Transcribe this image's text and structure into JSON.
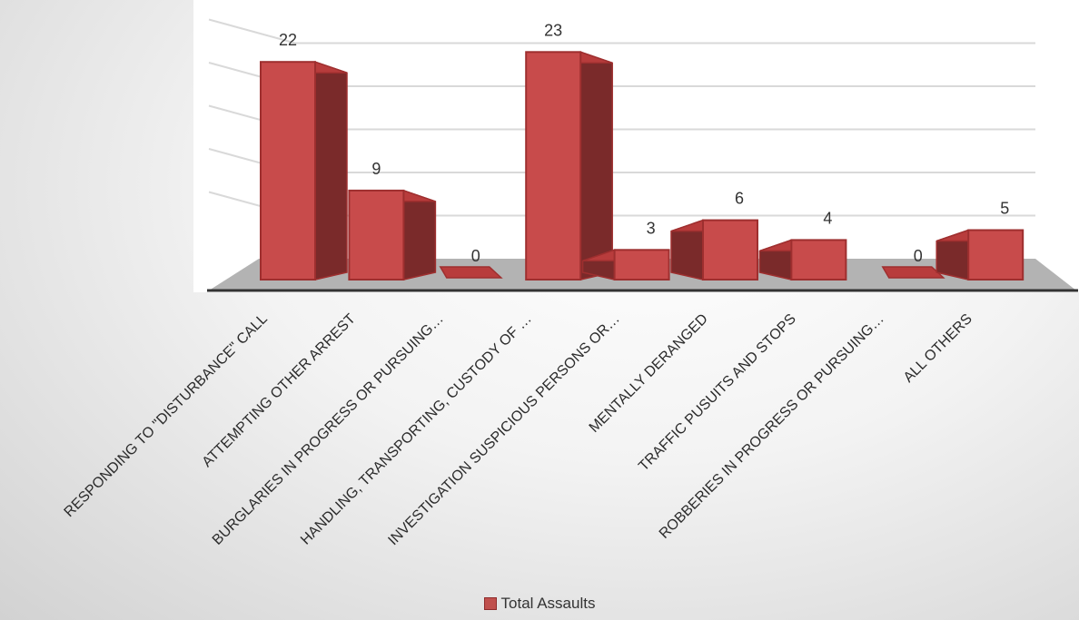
{
  "chart_data": {
    "type": "bar",
    "categories": [
      "RESPONDING TO \"DISTURBANCE\" CALL",
      "ATTEMPTING OTHER ARREST",
      "BURGLARIES IN PROGRESS OR PURSUING…",
      "HANDLING,  TRANSPORTING, CUSTODY OF …",
      "INVESTIGATION SUSPICIOUS PERSONS OR…",
      "MENTALLY DERANGED",
      "TRAFFIC PUSUITS AND STOPS",
      "ROBBERIES IN PROGRESS OR PURSUING…",
      "ALL OTHERS"
    ],
    "series": [
      {
        "name": "Total Assaults",
        "values": [
          22,
          9,
          0,
          23,
          3,
          6,
          4,
          0,
          5
        ]
      }
    ],
    "ylim": [
      0,
      25
    ],
    "grid": true,
    "legend_position": "bottom",
    "colors": {
      "bar_front": "#c84b4b",
      "bar_top": "#b83c3c",
      "bar_side": "#7a2a2a",
      "bar_edge": "#9e2f2f"
    }
  },
  "legend": {
    "label": "Total Assaults",
    "color": "#c0504d"
  }
}
